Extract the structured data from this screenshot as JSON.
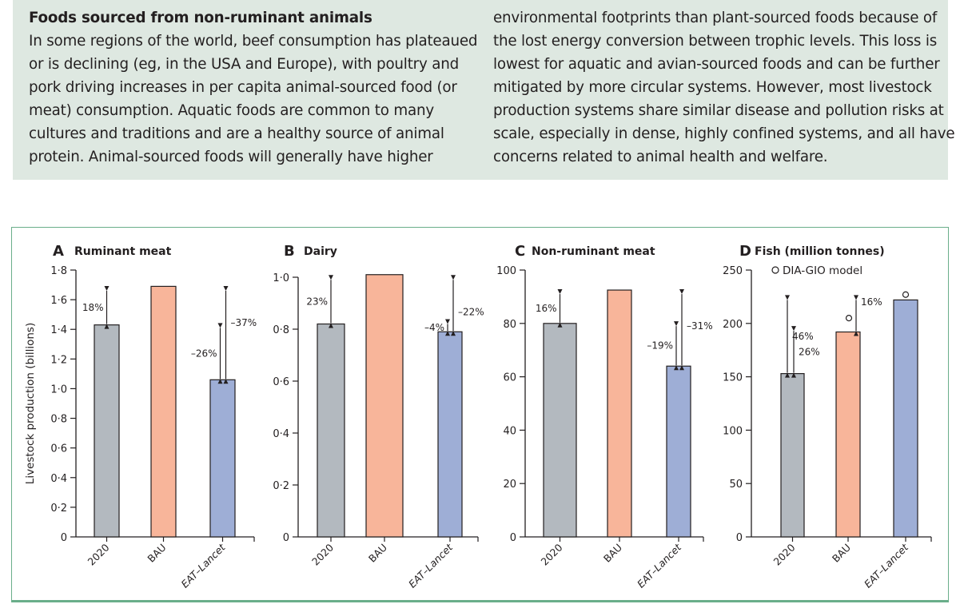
{
  "textbox": {
    "heading": "Foods sourced from non-ruminant animals",
    "left_lines": [
      "In some regions of the world, beef consumption has plateaued",
      "or is declining (eg, in the USA and Europe), with poultry and",
      "pork driving increases in per capita animal-sourced food (or",
      "meat) consumption. Aquatic foods are common to many",
      "cultures and traditions and are a healthy source of animal",
      "protein. Animal-sourced foods will generally have higher"
    ],
    "right_lines": [
      "environmental footprints than plant-sourced foods because of",
      "the lost energy conversion between trophic levels. This loss is",
      "lowest for aquatic and avian-sourced foods and can be further",
      "mitigated by more circular systems. However, most livestock",
      "production systems share similar disease and pollution risks at",
      "scale, especially in dense, highly confined systems, and all have",
      "concerns related to animal health and welfare."
    ]
  },
  "colors": {
    "2020": "#b3b9bf",
    "BAU": "#f8b59a",
    "EAT-Lancet": "#9eaed6",
    "border": "#6aae8a"
  },
  "chart_data": [
    {
      "type": "bar",
      "letter": "A",
      "title": "Ruminant meat",
      "ylabel": "Livestock production (billions)",
      "categories": [
        "2020",
        "BAU",
        "EAT–Lancet"
      ],
      "values": [
        1.43,
        1.69,
        1.06
      ],
      "ylim": [
        0,
        1.8
      ],
      "ticks": [
        0,
        0.2,
        0.4,
        0.6,
        0.8,
        1.0,
        1.2,
        1.4,
        1.6,
        1.8
      ],
      "tick_labels": [
        "0",
        "0·2",
        "0·4",
        "0·6",
        "0·8",
        "1·0",
        "1·2",
        "1·4",
        "1·6",
        "1·8"
      ],
      "annotations": [
        {
          "bar": 0,
          "from": 1.43,
          "to": 1.66,
          "label": "18%",
          "side": "left"
        },
        {
          "bar": 2,
          "from": 1.06,
          "to": 1.41,
          "label": "–26%",
          "side": "left"
        },
        {
          "bar": 2,
          "from": 1.06,
          "to": 1.66,
          "label": "–37%",
          "side": "right"
        }
      ]
    },
    {
      "type": "bar",
      "letter": "B",
      "title": "Dairy",
      "categories": [
        "2020",
        "BAU",
        "EAT–Lancet"
      ],
      "values": [
        0.82,
        1.01,
        0.79
      ],
      "ylim": [
        0,
        1.0
      ],
      "ticks": [
        0,
        0.2,
        0.4,
        0.6,
        0.8,
        1.0
      ],
      "tick_labels": [
        "0",
        "0·2",
        "0·4",
        "0·6",
        "0·8",
        "1·0"
      ],
      "annotations": [
        {
          "bar": 0,
          "from": 0.82,
          "to": 0.99,
          "label": "23%",
          "side": "left"
        },
        {
          "bar": 2,
          "from": 0.79,
          "to": 0.82,
          "label": "–4%",
          "side": "left"
        },
        {
          "bar": 2,
          "from": 0.79,
          "to": 0.99,
          "label": "–22%",
          "side": "right"
        }
      ]
    },
    {
      "type": "bar",
      "letter": "C",
      "title": "Non-ruminant meat",
      "categories": [
        "2020",
        "BAU",
        "EAT–Lancet"
      ],
      "values": [
        80,
        92.5,
        64
      ],
      "ylim": [
        0,
        100
      ],
      "ticks": [
        0,
        20,
        40,
        60,
        80,
        100
      ],
      "tick_labels": [
        "0",
        "20",
        "40",
        "60",
        "80",
        "100"
      ],
      "annotations": [
        {
          "bar": 0,
          "from": 80,
          "to": 91,
          "label": "16%",
          "side": "left"
        },
        {
          "bar": 2,
          "from": 64,
          "to": 79,
          "label": "–19%",
          "side": "left"
        },
        {
          "bar": 2,
          "from": 64,
          "to": 91,
          "label": "–31%",
          "side": "right"
        }
      ]
    },
    {
      "type": "bar",
      "letter": "D",
      "title": "Fish (million tonnes)",
      "legend": "DIA-GIO model",
      "categories": [
        "2020",
        "BAU",
        "EAT–Lancet"
      ],
      "values": [
        153,
        192,
        222
      ],
      "ylim": [
        0,
        250
      ],
      "model_points": [
        null,
        205,
        227
      ],
      "ticks": [
        0,
        50,
        100,
        150,
        200,
        250
      ],
      "tick_labels": [
        "0",
        "50",
        "100",
        "150",
        "200",
        "250"
      ],
      "annotations": [
        {
          "bar": 0,
          "from": 153,
          "to": 222,
          "label": "46%",
          "side": "rightfar"
        },
        {
          "bar": 0,
          "from": 153,
          "to": 193,
          "label": "26%",
          "side": "right"
        },
        {
          "bar": 1,
          "from": 192,
          "to": 222,
          "label": "16%",
          "side": "right"
        }
      ]
    }
  ]
}
